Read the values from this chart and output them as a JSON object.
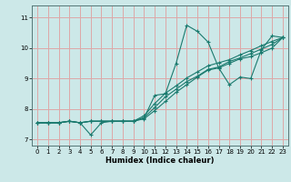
{
  "title": "",
  "xlabel": "Humidex (Indice chaleur)",
  "bg_color": "#cce8e8",
  "grid_color": "#dda8a8",
  "line_color": "#1a7a6e",
  "xlim": [
    -0.5,
    23.5
  ],
  "ylim": [
    6.8,
    11.4
  ],
  "yticks": [
    7,
    8,
    9,
    10,
    11
  ],
  "xticks": [
    0,
    1,
    2,
    3,
    4,
    5,
    6,
    7,
    8,
    9,
    10,
    11,
    12,
    13,
    14,
    15,
    16,
    17,
    18,
    19,
    20,
    21,
    22,
    23
  ],
  "lines": [
    {
      "x": [
        0,
        1,
        2,
        3,
        4,
        5,
        6,
        7,
        8,
        9,
        10,
        11,
        12,
        13,
        14,
        15,
        16,
        17,
        18,
        19,
        20,
        21,
        22,
        23
      ],
      "y": [
        7.55,
        7.55,
        7.55,
        7.6,
        7.55,
        7.15,
        7.55,
        7.6,
        7.6,
        7.6,
        7.7,
        8.45,
        8.5,
        9.5,
        10.75,
        10.55,
        10.2,
        9.35,
        8.8,
        9.05,
        9.0,
        9.95,
        10.4,
        10.35
      ]
    },
    {
      "x": [
        0,
        1,
        2,
        3,
        4,
        5,
        6,
        7,
        8,
        9,
        10,
        11,
        12,
        13,
        14,
        15,
        16,
        17,
        18,
        19,
        20,
        21,
        22,
        23
      ],
      "y": [
        7.55,
        7.55,
        7.55,
        7.6,
        7.55,
        7.6,
        7.6,
        7.6,
        7.6,
        7.6,
        7.68,
        7.95,
        8.25,
        8.55,
        8.8,
        9.05,
        9.28,
        9.35,
        9.5,
        9.65,
        9.72,
        9.85,
        10.0,
        10.35
      ]
    },
    {
      "x": [
        0,
        1,
        2,
        3,
        4,
        5,
        6,
        7,
        8,
        9,
        10,
        11,
        12,
        13,
        14,
        15,
        16,
        17,
        18,
        19,
        20,
        21,
        22,
        23
      ],
      "y": [
        7.55,
        7.55,
        7.55,
        7.6,
        7.55,
        7.6,
        7.6,
        7.6,
        7.6,
        7.6,
        7.72,
        8.05,
        8.4,
        8.65,
        8.9,
        9.08,
        9.3,
        9.38,
        9.56,
        9.68,
        9.82,
        9.97,
        10.12,
        10.35
      ]
    },
    {
      "x": [
        0,
        1,
        2,
        3,
        4,
        5,
        6,
        7,
        8,
        9,
        10,
        11,
        12,
        13,
        14,
        15,
        16,
        17,
        18,
        19,
        20,
        21,
        22,
        23
      ],
      "y": [
        7.55,
        7.55,
        7.55,
        7.6,
        7.55,
        7.6,
        7.6,
        7.6,
        7.6,
        7.6,
        7.78,
        8.18,
        8.52,
        8.76,
        9.02,
        9.22,
        9.42,
        9.52,
        9.62,
        9.78,
        9.92,
        10.08,
        10.22,
        10.35
      ]
    }
  ]
}
